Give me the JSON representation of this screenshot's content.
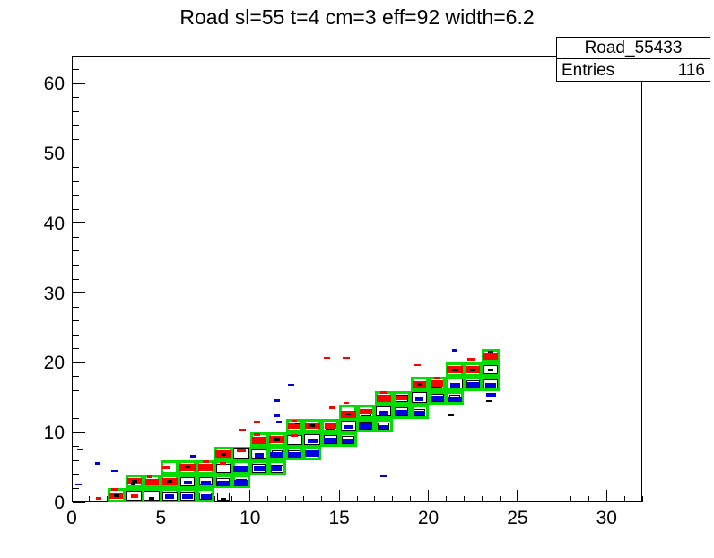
{
  "chart_data": {
    "type": "box2d-histogram",
    "title": "Road sl=55 t=4 cm=3 eff=92 width=6.2",
    "stats": {
      "name": "Road_55433",
      "entries_label": "Entries",
      "entries_value": "116"
    },
    "x_axis": {
      "range": [
        0,
        32
      ],
      "major_ticks": [
        0,
        5,
        10,
        15,
        20,
        25,
        30
      ],
      "minor_step": 1
    },
    "y_axis": {
      "range": [
        0,
        64
      ],
      "major_ticks": [
        0,
        10,
        20,
        30,
        40,
        50,
        60
      ],
      "minor_step": 2
    },
    "legend_position": "none",
    "grid": false,
    "colors": {
      "road": "#00dd00",
      "red": "#ff0000",
      "blue": "#0000e0",
      "black": "#000000",
      "hollow_fill": "#ffffff",
      "hollow_border": "#000000"
    },
    "road_cells": [
      [
        2,
        0
      ],
      [
        3,
        0
      ],
      [
        3,
        1
      ],
      [
        4,
        0
      ],
      [
        4,
        1
      ],
      [
        5,
        0
      ],
      [
        5,
        1
      ],
      [
        5,
        2
      ],
      [
        6,
        0
      ],
      [
        6,
        1
      ],
      [
        6,
        2
      ],
      [
        7,
        0
      ],
      [
        7,
        1
      ],
      [
        7,
        2
      ],
      [
        8,
        1
      ],
      [
        8,
        2
      ],
      [
        8,
        3
      ],
      [
        9,
        1
      ],
      [
        9,
        2
      ],
      [
        9,
        3
      ],
      [
        10,
        2
      ],
      [
        10,
        3
      ],
      [
        10,
        4
      ],
      [
        11,
        2
      ],
      [
        11,
        3
      ],
      [
        11,
        4
      ],
      [
        12,
        3
      ],
      [
        12,
        4
      ],
      [
        12,
        5
      ],
      [
        13,
        3
      ],
      [
        13,
        4
      ],
      [
        13,
        5
      ],
      [
        14,
        4
      ],
      [
        14,
        5
      ],
      [
        15,
        4
      ],
      [
        15,
        5
      ],
      [
        15,
        6
      ],
      [
        16,
        5
      ],
      [
        16,
        6
      ],
      [
        17,
        5
      ],
      [
        17,
        6
      ],
      [
        17,
        7
      ],
      [
        18,
        6
      ],
      [
        18,
        7
      ],
      [
        19,
        6
      ],
      [
        19,
        7
      ],
      [
        19,
        8
      ],
      [
        20,
        7
      ],
      [
        20,
        8
      ],
      [
        21,
        7
      ],
      [
        21,
        8
      ],
      [
        21,
        9
      ],
      [
        22,
        8
      ],
      [
        22,
        9
      ],
      [
        23,
        8
      ],
      [
        23,
        9
      ],
      [
        23,
        10
      ]
    ],
    "boxes": [
      [
        2.5,
        1,
        0.75,
        0.9,
        "r"
      ],
      [
        2.5,
        1,
        0.3,
        0.35,
        "k"
      ],
      [
        2.4,
        1.85,
        0.35,
        0.35,
        "r"
      ],
      [
        3.5,
        0.95,
        0.85,
        1.5,
        "h"
      ],
      [
        3.5,
        0.95,
        0.4,
        0.5,
        "r"
      ],
      [
        3.5,
        3,
        0.8,
        0.95,
        "r"
      ],
      [
        3.5,
        3,
        0.3,
        0.35,
        "k"
      ],
      [
        3.45,
        2.65,
        0.25,
        0.3,
        "k"
      ],
      [
        4.5,
        0.95,
        0.9,
        1.5,
        "h"
      ],
      [
        4.5,
        0.6,
        0.3,
        0.35,
        "k"
      ],
      [
        4.5,
        2.9,
        0.75,
        0.9,
        "r"
      ],
      [
        4.4,
        3.65,
        0.3,
        0.35,
        "r"
      ],
      [
        5.5,
        0.9,
        0.85,
        1.4,
        "h"
      ],
      [
        5.5,
        0.85,
        0.5,
        0.6,
        "b"
      ],
      [
        5.5,
        3,
        0.85,
        1.0,
        "r"
      ],
      [
        5.5,
        3,
        0.3,
        0.3,
        "k"
      ],
      [
        5.3,
        4.9,
        0.4,
        0.4,
        "r"
      ],
      [
        6.5,
        0.9,
        0.8,
        1.3,
        "h"
      ],
      [
        6.5,
        0.8,
        0.6,
        0.7,
        "b"
      ],
      [
        6.5,
        3,
        0.8,
        1.25,
        "h"
      ],
      [
        6.5,
        2.8,
        0.45,
        0.5,
        "b"
      ],
      [
        6.5,
        5,
        0.9,
        1.1,
        "r"
      ],
      [
        6.5,
        5,
        0.3,
        0.35,
        "k"
      ],
      [
        7.5,
        0.9,
        0.7,
        1.1,
        "h"
      ],
      [
        7.5,
        0.85,
        0.55,
        0.65,
        "b"
      ],
      [
        7.5,
        3,
        0.75,
        1.2,
        "h"
      ],
      [
        7.5,
        2.8,
        0.55,
        0.6,
        "b"
      ],
      [
        7.5,
        5,
        0.8,
        0.95,
        "r"
      ],
      [
        7.5,
        5.8,
        0.35,
        0.4,
        "r"
      ],
      [
        8.5,
        0.8,
        0.7,
        1.1,
        "h"
      ],
      [
        8.5,
        0.45,
        0.3,
        0.35,
        "k"
      ],
      [
        8.5,
        2.9,
        0.75,
        1.25,
        "h"
      ],
      [
        8.5,
        2.7,
        0.7,
        0.8,
        "b"
      ],
      [
        8.5,
        4.9,
        0.8,
        1.3,
        "h"
      ],
      [
        8.5,
        5.6,
        0.35,
        0.4,
        "r"
      ],
      [
        8.5,
        6.9,
        0.85,
        1.0,
        "r"
      ],
      [
        8.5,
        6.9,
        0.3,
        0.35,
        "k"
      ],
      [
        9.5,
        2.9,
        0.6,
        1.0,
        "h"
      ],
      [
        9.5,
        2.8,
        0.8,
        0.9,
        "b"
      ],
      [
        9.5,
        4.85,
        0.85,
        0.95,
        "b"
      ],
      [
        9.5,
        4.9,
        0.5,
        0.8,
        "h"
      ],
      [
        9.5,
        7,
        0.9,
        1.6,
        "h"
      ],
      [
        9.5,
        7.5,
        0.5,
        0.55,
        "r"
      ],
      [
        9.6,
        10.4,
        0.35,
        0.3,
        "r"
      ],
      [
        10.5,
        4.9,
        0.75,
        1.2,
        "h"
      ],
      [
        10.5,
        4.85,
        0.6,
        0.7,
        "b"
      ],
      [
        10.5,
        6.9,
        0.85,
        1.4,
        "h"
      ],
      [
        10.5,
        6.75,
        0.5,
        0.55,
        "b"
      ],
      [
        10.5,
        8.9,
        0.8,
        1.0,
        "r"
      ],
      [
        10.4,
        9.7,
        0.35,
        0.4,
        "r"
      ],
      [
        10.4,
        11.5,
        0.35,
        0.35,
        "r"
      ],
      [
        11.5,
        4.85,
        0.7,
        1.1,
        "h"
      ],
      [
        11.5,
        4.8,
        0.55,
        0.6,
        "b"
      ],
      [
        11.5,
        6.9,
        0.6,
        1.0,
        "h"
      ],
      [
        11.5,
        6.8,
        0.75,
        0.85,
        "b"
      ],
      [
        11.5,
        9,
        0.9,
        1.1,
        "r"
      ],
      [
        11.5,
        9,
        0.35,
        0.4,
        "k"
      ],
      [
        11.5,
        14.6,
        0.3,
        0.3,
        "b"
      ],
      [
        11.5,
        12.4,
        0.35,
        0.3,
        "b"
      ],
      [
        11.6,
        11.6,
        0.3,
        0.3,
        "b"
      ],
      [
        12.5,
        6.9,
        0.7,
        1.15,
        "h"
      ],
      [
        12.5,
        6.8,
        0.75,
        0.85,
        "b"
      ],
      [
        12.5,
        8.9,
        0.85,
        1.4,
        "h"
      ],
      [
        12.5,
        9.6,
        0.4,
        0.45,
        "r"
      ],
      [
        12.5,
        10.9,
        0.7,
        0.85,
        "r"
      ],
      [
        12.5,
        11.7,
        0.3,
        0.35,
        "r"
      ],
      [
        12.3,
        16.8,
        0.35,
        0.3,
        "b"
      ],
      [
        12.65,
        11.3,
        0.25,
        0.3,
        "k"
      ],
      [
        13.5,
        6.95,
        0.55,
        0.9,
        "h"
      ],
      [
        13.5,
        7,
        0.8,
        0.9,
        "b"
      ],
      [
        13.5,
        9,
        0.9,
        1.5,
        "h"
      ],
      [
        13.5,
        8.8,
        0.55,
        0.6,
        "b"
      ],
      [
        13.5,
        11,
        0.85,
        1.0,
        "r"
      ],
      [
        13.5,
        11,
        0.3,
        0.35,
        "k"
      ],
      [
        13.4,
        8.6,
        0.3,
        0.3,
        "b"
      ],
      [
        14.5,
        9,
        0.75,
        1.2,
        "h"
      ],
      [
        14.5,
        8.85,
        0.7,
        0.8,
        "b"
      ],
      [
        14.5,
        10.9,
        0.55,
        0.9,
        "h"
      ],
      [
        14.5,
        11,
        0.65,
        0.8,
        "r"
      ],
      [
        14.3,
        20.7,
        0.35,
        0.3,
        "r"
      ],
      [
        14.6,
        13.6,
        0.35,
        0.35,
        "r"
      ],
      [
        15.5,
        8.9,
        0.7,
        1.1,
        "h"
      ],
      [
        15.5,
        8.8,
        0.6,
        0.7,
        "b"
      ],
      [
        15.5,
        11,
        0.85,
        1.4,
        "h"
      ],
      [
        15.5,
        10.8,
        0.45,
        0.5,
        "b"
      ],
      [
        15.5,
        12.6,
        0.85,
        1.0,
        "r"
      ],
      [
        15.5,
        12.6,
        0.3,
        0.35,
        "k"
      ],
      [
        15.4,
        14.3,
        0.3,
        0.3,
        "r"
      ],
      [
        15.4,
        20.7,
        0.4,
        0.3,
        "r"
      ],
      [
        16.5,
        11,
        0.75,
        1.2,
        "h"
      ],
      [
        16.5,
        10.9,
        0.7,
        0.8,
        "b"
      ],
      [
        16.5,
        12.9,
        0.6,
        1.0,
        "h"
      ],
      [
        16.5,
        13,
        0.7,
        0.85,
        "r"
      ],
      [
        17.5,
        10.9,
        0.65,
        1.0,
        "h"
      ],
      [
        17.5,
        10.8,
        0.55,
        0.6,
        "b"
      ],
      [
        17.5,
        13,
        0.85,
        1.4,
        "h"
      ],
      [
        17.5,
        12.8,
        0.5,
        0.55,
        "b"
      ],
      [
        17.5,
        14.9,
        0.8,
        0.95,
        "r"
      ],
      [
        17.5,
        15.7,
        0.35,
        0.4,
        "r"
      ],
      [
        17.5,
        3.8,
        0.4,
        0.35,
        "b"
      ],
      [
        18.5,
        13,
        0.75,
        1.2,
        "h"
      ],
      [
        18.5,
        12.9,
        0.7,
        0.8,
        "b"
      ],
      [
        18.5,
        14.9,
        0.7,
        1.1,
        "h"
      ],
      [
        18.5,
        15,
        0.6,
        0.7,
        "r"
      ],
      [
        19.5,
        12.9,
        0.65,
        1.0,
        "h"
      ],
      [
        19.5,
        12.8,
        0.6,
        0.7,
        "b"
      ],
      [
        19.5,
        15,
        0.9,
        1.5,
        "h"
      ],
      [
        19.5,
        14.8,
        0.45,
        0.5,
        "b"
      ],
      [
        19.5,
        16.9,
        0.75,
        0.9,
        "r"
      ],
      [
        19.5,
        16.9,
        0.3,
        0.35,
        "k"
      ],
      [
        19.4,
        19.7,
        0.35,
        0.3,
        "r"
      ],
      [
        20.5,
        15,
        0.75,
        1.2,
        "h"
      ],
      [
        20.5,
        14.9,
        0.7,
        0.8,
        "b"
      ],
      [
        20.5,
        16.9,
        0.6,
        1.0,
        "h"
      ],
      [
        20.5,
        17,
        0.7,
        0.85,
        "r"
      ],
      [
        20.5,
        17.8,
        0.3,
        0.35,
        "r"
      ],
      [
        21.5,
        14.9,
        0.6,
        1.0,
        "h"
      ],
      [
        21.5,
        14.8,
        0.75,
        0.85,
        "b"
      ],
      [
        21.5,
        17,
        0.85,
        1.4,
        "h"
      ],
      [
        21.5,
        16.8,
        0.55,
        0.6,
        "b"
      ],
      [
        21.5,
        19,
        0.9,
        1.1,
        "r"
      ],
      [
        21.5,
        19,
        0.35,
        0.4,
        "k"
      ],
      [
        21.5,
        21.8,
        0.3,
        0.3,
        "b"
      ],
      [
        21.3,
        12.5,
        0.3,
        0.3,
        "k"
      ],
      [
        22.5,
        16.9,
        0.75,
        1.2,
        "h"
      ],
      [
        22.5,
        16.8,
        0.65,
        0.75,
        "b"
      ],
      [
        22.5,
        19,
        0.8,
        0.95,
        "r"
      ],
      [
        22.5,
        19,
        0.3,
        0.35,
        "k"
      ],
      [
        22.4,
        20.5,
        0.4,
        0.4,
        "r"
      ],
      [
        23.5,
        17,
        0.8,
        1.3,
        "h"
      ],
      [
        23.5,
        16.8,
        0.6,
        0.65,
        "b"
      ],
      [
        23.5,
        19,
        0.8,
        1.3,
        "h"
      ],
      [
        23.5,
        19,
        0.3,
        0.35,
        "k"
      ],
      [
        23.5,
        20.9,
        0.8,
        0.95,
        "r"
      ],
      [
        23.5,
        21.6,
        0.3,
        0.3,
        "k"
      ],
      [
        23.5,
        15.4,
        0.55,
        0.6,
        "b"
      ],
      [
        23.4,
        14.5,
        0.3,
        0.3,
        "k"
      ],
      [
        1.5,
        0.6,
        0.3,
        0.35,
        "r"
      ],
      [
        0.5,
        7.6,
        0.35,
        0.35,
        "b"
      ],
      [
        1.45,
        5.6,
        0.3,
        0.3,
        "b"
      ],
      [
        2.4,
        4.5,
        0.35,
        0.3,
        "b"
      ],
      [
        0.4,
        2.6,
        0.35,
        0.3,
        "b"
      ],
      [
        6.8,
        6.6,
        0.3,
        0.3,
        "b"
      ]
    ]
  }
}
